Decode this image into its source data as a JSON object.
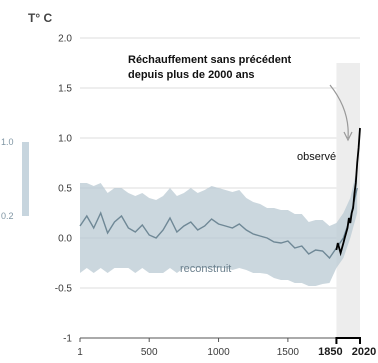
{
  "chart_data": {
    "type": "line",
    "ylabel": "T° C",
    "ylim": [
      -1.0,
      2.0
    ],
    "xlim": [
      1,
      2020
    ],
    "y_ticks": [
      "2.0",
      "1.5",
      "1.0",
      "0.5",
      "0.0",
      "-0.5",
      "-1"
    ],
    "y_tick_values": [
      2.0,
      1.5,
      1.0,
      0.5,
      0.0,
      -0.5,
      -1.0
    ],
    "x_ticks": [
      "1",
      "500",
      "1000",
      "1500"
    ],
    "x_tick_values": [
      1,
      500,
      1000,
      1500
    ],
    "x_ticks_bold": [
      "1850",
      "2020"
    ],
    "x_ticks_bold_values": [
      1850,
      2020
    ],
    "grid": "horizontal",
    "shaded_period": [
      1850,
      2020
    ],
    "annotation": {
      "line1": "Réchauffement sans précédent",
      "line2": "depuis plus de 2000 ans",
      "arrow_to": [
        2000,
        1.03
      ]
    },
    "side_scale": {
      "top": "1.0",
      "bottom": "0.2"
    },
    "series": [
      {
        "label": "reconstruit",
        "color": "#6f8896",
        "band_color": "#b9c9d3",
        "x": [
          1,
          50,
          100,
          150,
          200,
          250,
          300,
          350,
          400,
          450,
          500,
          550,
          600,
          650,
          700,
          750,
          800,
          850,
          900,
          950,
          1000,
          1050,
          1100,
          1150,
          1200,
          1250,
          1300,
          1350,
          1400,
          1450,
          1500,
          1550,
          1600,
          1650,
          1700,
          1750,
          1800,
          1850,
          1900,
          1950,
          2000
        ],
        "values": [
          0.12,
          0.22,
          0.1,
          0.25,
          0.05,
          0.16,
          0.22,
          0.1,
          0.06,
          0.13,
          0.03,
          0.0,
          0.08,
          0.2,
          0.06,
          0.12,
          0.16,
          0.08,
          0.12,
          0.19,
          0.14,
          0.12,
          0.1,
          0.14,
          0.08,
          0.04,
          0.02,
          0.0,
          -0.04,
          -0.05,
          -0.03,
          -0.1,
          -0.08,
          -0.16,
          -0.12,
          -0.13,
          -0.2,
          -0.1,
          0.0,
          0.2,
          0.5
        ],
        "band_lower": [
          -0.35,
          -0.3,
          -0.35,
          -0.3,
          -0.35,
          -0.3,
          -0.3,
          -0.3,
          -0.35,
          -0.3,
          -0.35,
          -0.35,
          -0.35,
          -0.3,
          -0.35,
          -0.3,
          -0.3,
          -0.3,
          -0.3,
          -0.3,
          -0.3,
          -0.3,
          -0.32,
          -0.3,
          -0.32,
          -0.35,
          -0.35,
          -0.36,
          -0.4,
          -0.42,
          -0.42,
          -0.45,
          -0.45,
          -0.48,
          -0.48,
          -0.46,
          -0.45,
          -0.3,
          -0.2,
          0.0,
          0.25
        ],
        "band_upper": [
          0.55,
          0.55,
          0.52,
          0.55,
          0.45,
          0.5,
          0.5,
          0.45,
          0.42,
          0.45,
          0.4,
          0.38,
          0.42,
          0.5,
          0.42,
          0.45,
          0.5,
          0.45,
          0.48,
          0.52,
          0.5,
          0.48,
          0.46,
          0.48,
          0.4,
          0.36,
          0.34,
          0.3,
          0.3,
          0.28,
          0.28,
          0.24,
          0.24,
          0.16,
          0.18,
          0.18,
          0.12,
          0.15,
          0.25,
          0.4,
          0.7
        ]
      },
      {
        "label": "observé",
        "color": "#000000",
        "x": [
          1850,
          1860,
          1870,
          1880,
          1890,
          1900,
          1910,
          1920,
          1930,
          1940,
          1950,
          1960,
          1970,
          1980,
          1990,
          2000,
          2010,
          2020
        ],
        "values": [
          -0.12,
          -0.05,
          -0.1,
          -0.15,
          -0.1,
          -0.05,
          0.0,
          0.05,
          0.1,
          0.2,
          0.15,
          0.25,
          0.3,
          0.45,
          0.55,
          0.75,
          0.9,
          1.1
        ]
      }
    ]
  }
}
